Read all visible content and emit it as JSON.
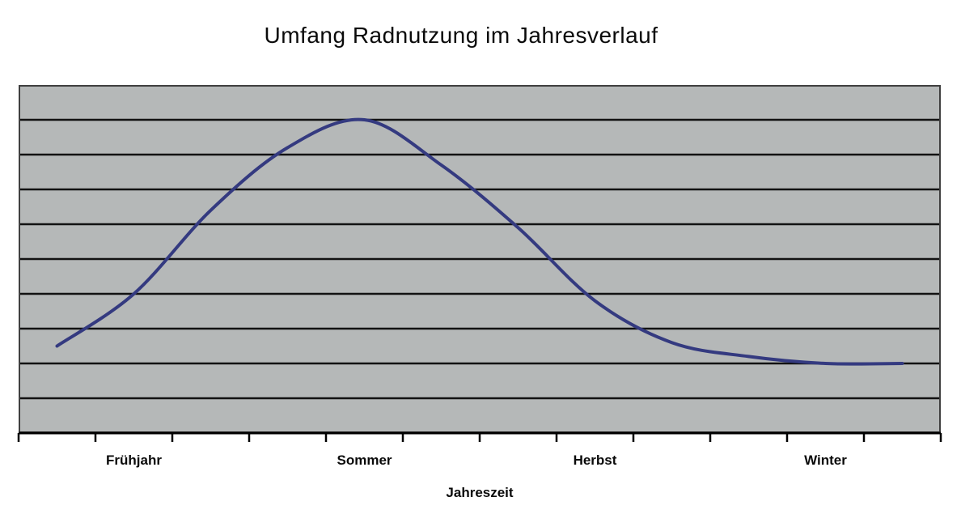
{
  "title": {
    "text": "Umfang Radnutzung im Jahresverlauf"
  },
  "x_axis": {
    "label": "Jahreszeit",
    "categories": [
      "Frühjahr",
      "Sommer",
      "Herbst",
      "Winter"
    ]
  },
  "chart_data": {
    "type": "line",
    "title": "Umfang Radnutzung im Jahresverlauf",
    "xlabel": "Jahreszeit",
    "ylabel": "",
    "categories": [
      "Frühjahr",
      "Sommer",
      "Herbst",
      "Winter"
    ],
    "category_center_months": [
      2,
      5,
      8,
      11
    ],
    "x_months": [
      1,
      2,
      3,
      4,
      5,
      6,
      7,
      8,
      9,
      10,
      11,
      12
    ],
    "series": [
      {
        "name": "Umfang Radnutzung",
        "values": [
          2.5,
          4.0,
          6.4,
          8.2,
          9.0,
          7.7,
          5.9,
          3.8,
          2.6,
          2.2,
          2.0,
          2.0
        ]
      }
    ],
    "ylim": [
      0,
      10
    ],
    "y_gridline_step": 1,
    "y_tick_labels": "none",
    "grid": "horizontal",
    "legend_position": "none",
    "colors": {
      "line": "#343a80",
      "plot_background": "#b5b8b8",
      "gridline": "#121212",
      "border": "#3f3f3f",
      "axis": "#000000",
      "text": "#0a0a0a",
      "page_background": "#ffffff"
    }
  }
}
